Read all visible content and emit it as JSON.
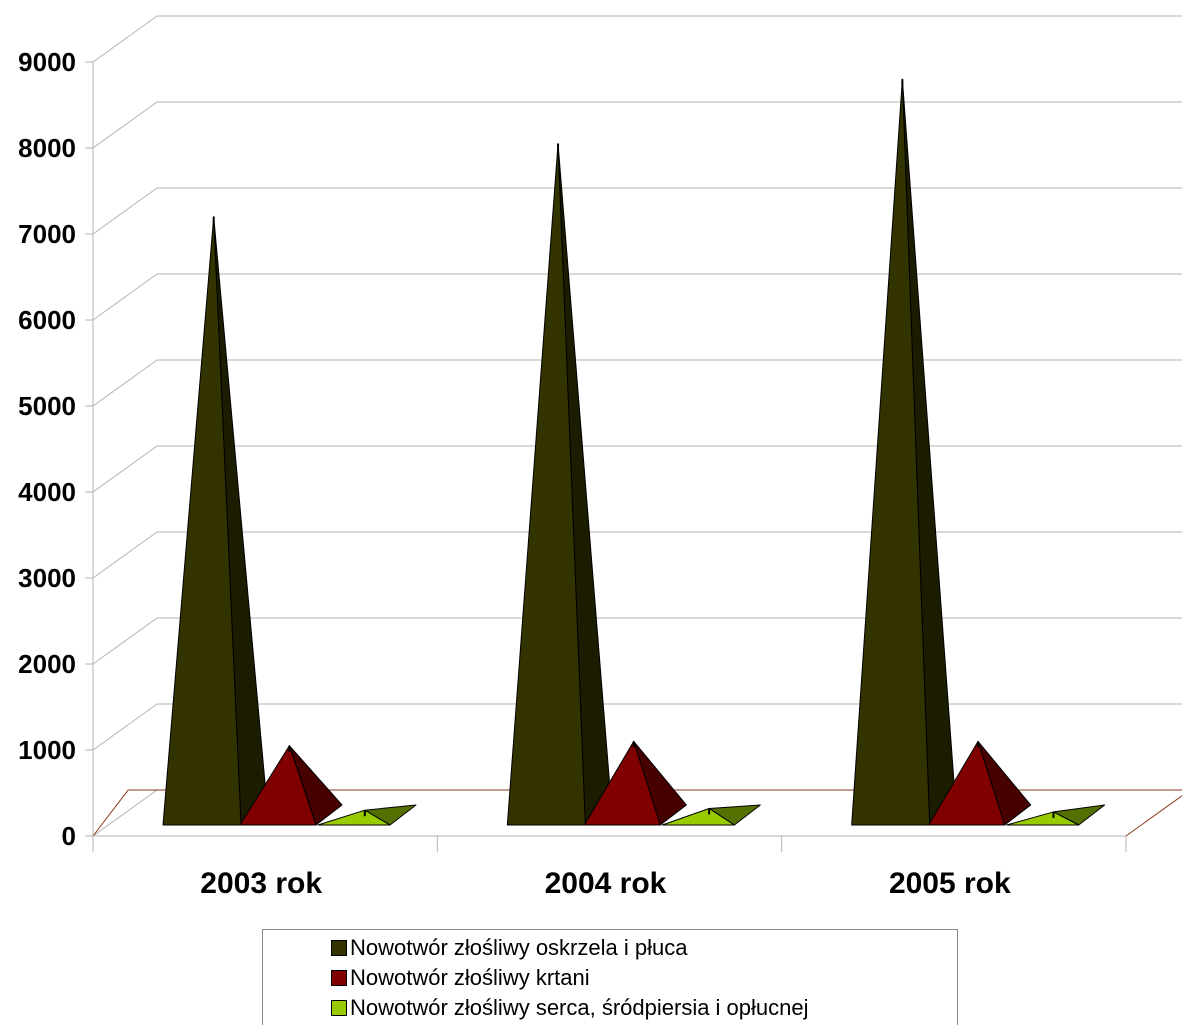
{
  "chart_data": {
    "type": "bar",
    "title": "",
    "xlabel": "",
    "ylabel": "",
    "categories": [
      "2003 rok",
      "2004 rok",
      "2005 rok"
    ],
    "ylim": [
      0,
      9000
    ],
    "yticks": [
      "0",
      "1000",
      "2000",
      "3000",
      "4000",
      "5000",
      "6000",
      "7000",
      "8000",
      "9000"
    ],
    "grid": true,
    "legend_position": "bottom",
    "series": [
      {
        "name": "Nowotwór złośliwy oskrzela i płuca",
        "color": "#333300",
        "values": [
          7200,
          8050,
          8800
        ]
      },
      {
        "name": "Nowotwór złośliwy krtani",
        "color": "#800000",
        "values": [
          1050,
          1100,
          1100
        ]
      },
      {
        "name": "Nowotwór złośliwy serca, śródpiersia i opłucnej",
        "color": "#99cc00",
        "values": [
          300,
          320,
          280
        ]
      }
    ]
  }
}
